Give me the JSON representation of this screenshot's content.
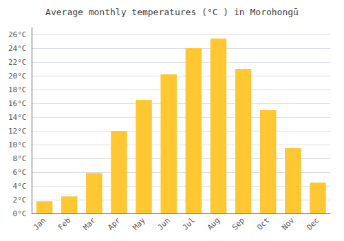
{
  "chart_data": {
    "type": "bar",
    "title": "Average monthly temperatures (°C ) in Morohongū",
    "categories": [
      "Jan",
      "Feb",
      "Mar",
      "Apr",
      "May",
      "Jun",
      "Jul",
      "Aug",
      "Sep",
      "Oct",
      "Nov",
      "Dec"
    ],
    "values": [
      1.8,
      2.5,
      5.9,
      12.0,
      16.5,
      20.2,
      24.0,
      25.4,
      21.0,
      15.0,
      9.5,
      4.5
    ],
    "color": "#FFC832",
    "ylim": [
      0,
      27
    ],
    "yticks": [
      {
        "value": 0,
        "label": "0°C"
      },
      {
        "value": 2,
        "label": "2°C"
      },
      {
        "value": 4,
        "label": "4°C"
      },
      {
        "value": 6,
        "label": "6°C"
      },
      {
        "value": 8,
        "label": "8°C"
      },
      {
        "value": 10,
        "label": "10°C"
      },
      {
        "value": 12,
        "label": "12°C"
      },
      {
        "value": 14,
        "label": "14°C"
      },
      {
        "value": 16,
        "label": "16°C"
      },
      {
        "value": 18,
        "label": "18°C"
      },
      {
        "value": 20,
        "label": "20°C"
      },
      {
        "value": 22,
        "label": "22°C"
      },
      {
        "value": 24,
        "label": "24°C"
      },
      {
        "value": 26,
        "label": "26°C"
      }
    ],
    "grid": true
  }
}
